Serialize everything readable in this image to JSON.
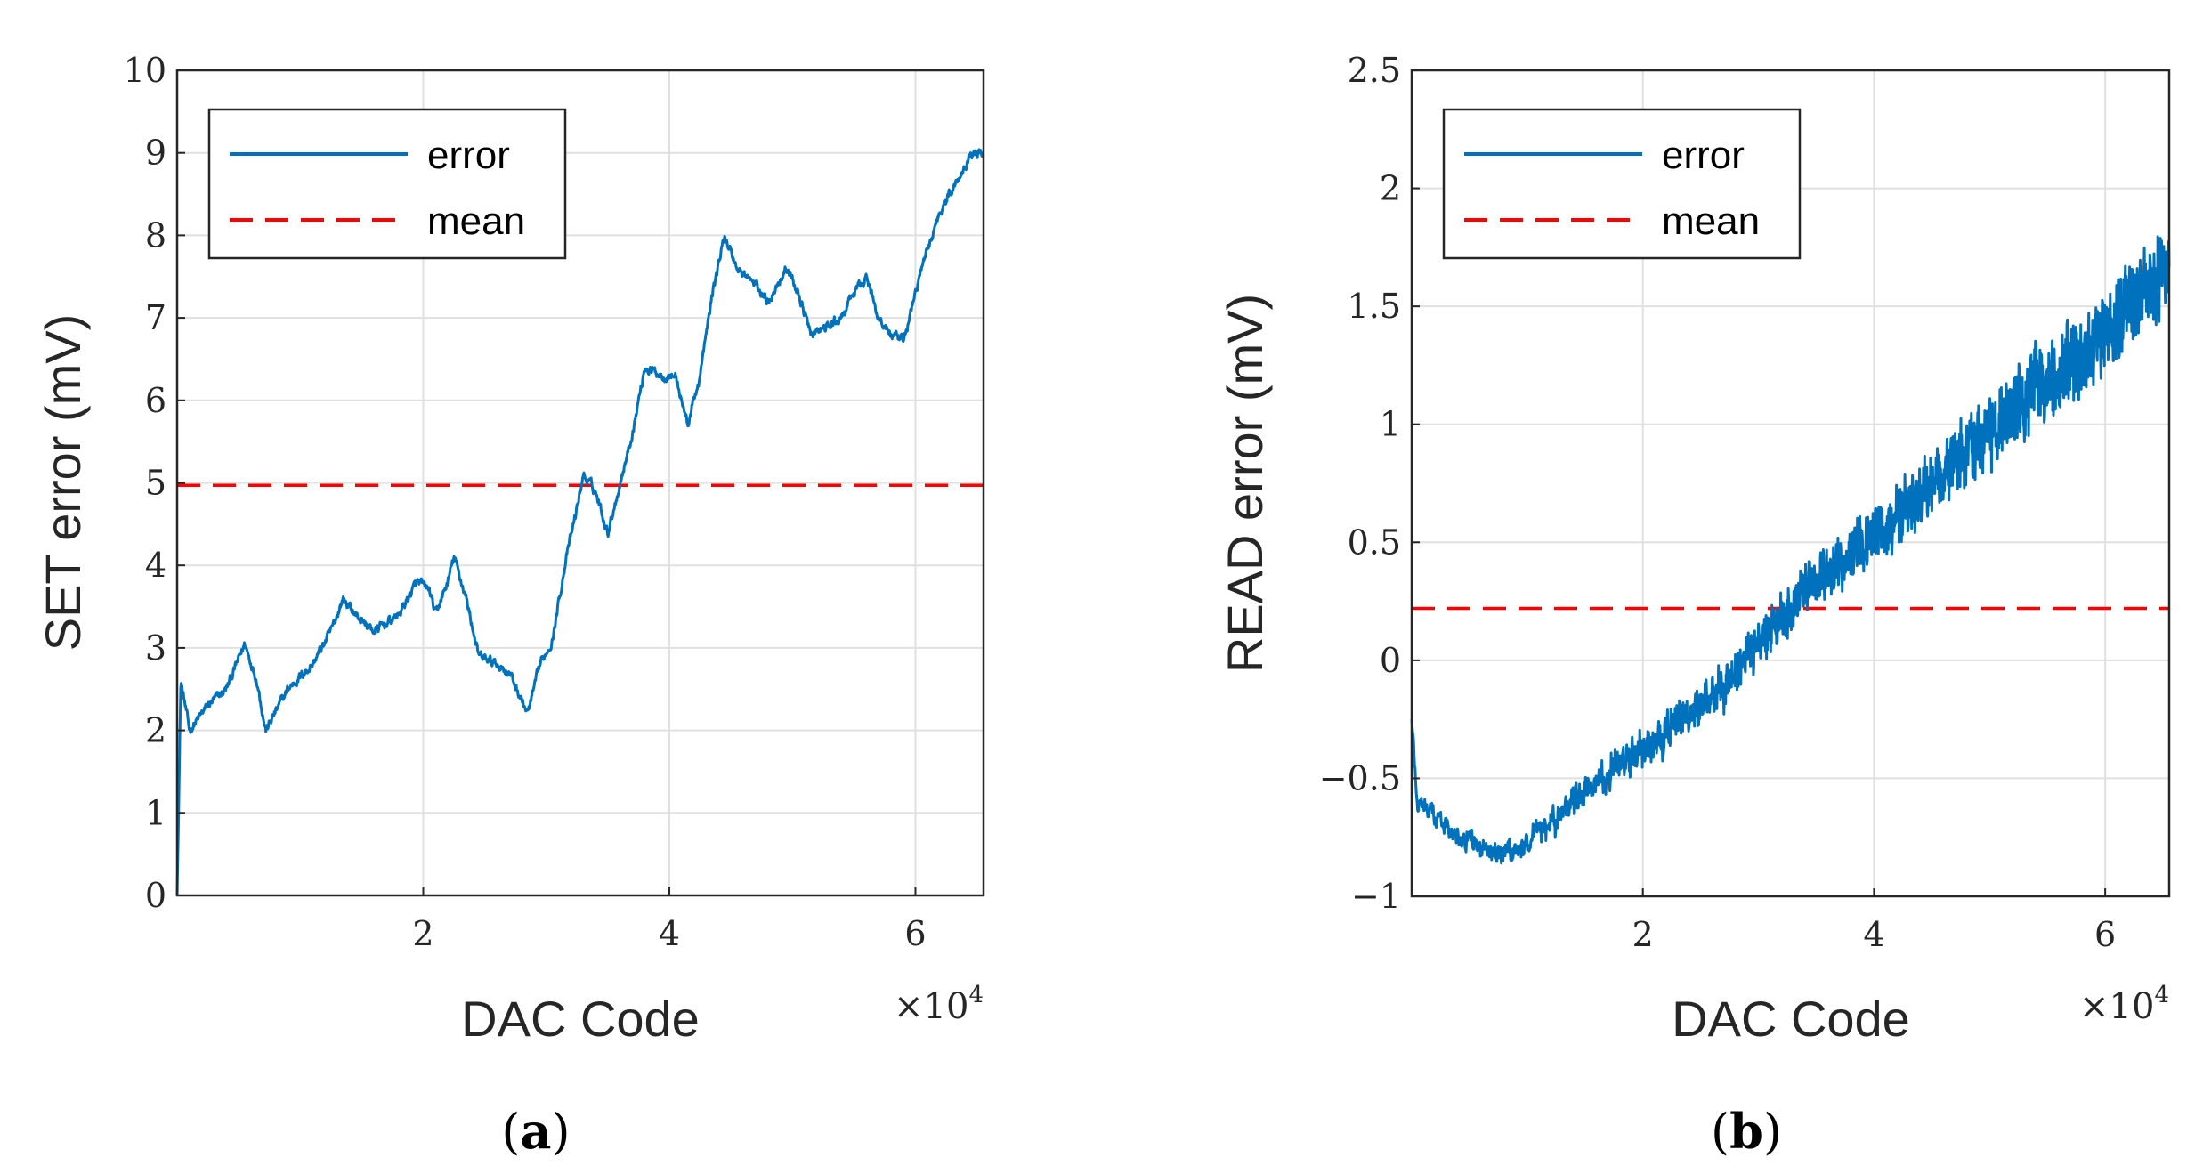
{
  "chart_data": [
    {
      "id": "a",
      "type": "line",
      "subfigure_label": "a",
      "xlabel": "DAC Code",
      "ylabel": "SET error (mV)",
      "xlim": [
        0,
        65535
      ],
      "ylim": [
        0,
        10
      ],
      "x_multiplier": "×10",
      "x_multiplier_exp": "4",
      "xticks": [
        {
          "value": 20000,
          "label": "2"
        },
        {
          "value": 40000,
          "label": "4"
        },
        {
          "value": 60000,
          "label": "6"
        }
      ],
      "yticks": [
        0,
        1,
        2,
        3,
        4,
        5,
        6,
        7,
        8,
        9,
        10
      ],
      "ytick_labels": [
        "0",
        "1",
        "2",
        "3",
        "4",
        "5",
        "6",
        "7",
        "8",
        "9",
        "10"
      ],
      "grid": true,
      "legend": {
        "placement": "top-left",
        "entries": [
          "error",
          "mean"
        ]
      },
      "series": [
        {
          "name": "error",
          "style": "solid",
          "color": "#0072BD",
          "noise": 0.08,
          "points": [
            [
              0,
              0
            ],
            [
              300,
              2.6
            ],
            [
              1000,
              2.0
            ],
            [
              2500,
              2.3
            ],
            [
              4000,
              2.5
            ],
            [
              5500,
              3.05
            ],
            [
              6500,
              2.6
            ],
            [
              7200,
              2.0
            ],
            [
              9000,
              2.5
            ],
            [
              11000,
              2.8
            ],
            [
              12500,
              3.2
            ],
            [
              13500,
              3.6
            ],
            [
              14500,
              3.4
            ],
            [
              16000,
              3.2
            ],
            [
              17000,
              3.3
            ],
            [
              18000,
              3.4
            ],
            [
              19500,
              3.8
            ],
            [
              20500,
              3.7
            ],
            [
              21000,
              3.4
            ],
            [
              22000,
              3.8
            ],
            [
              22500,
              4.1
            ],
            [
              23500,
              3.6
            ],
            [
              24500,
              2.9
            ],
            [
              26000,
              2.8
            ],
            [
              27000,
              2.7
            ],
            [
              28500,
              2.2
            ],
            [
              29500,
              2.8
            ],
            [
              30500,
              3.1
            ],
            [
              31500,
              4.0
            ],
            [
              32500,
              4.7
            ],
            [
              33000,
              5.1
            ],
            [
              34000,
              4.9
            ],
            [
              35000,
              4.4
            ],
            [
              36000,
              5.0
            ],
            [
              37000,
              5.6
            ],
            [
              38000,
              6.4
            ],
            [
              39500,
              6.3
            ],
            [
              40500,
              6.3
            ],
            [
              41500,
              5.7
            ],
            [
              42500,
              6.3
            ],
            [
              43500,
              7.3
            ],
            [
              44500,
              8.0
            ],
            [
              45500,
              7.6
            ],
            [
              47000,
              7.4
            ],
            [
              48000,
              7.2
            ],
            [
              49500,
              7.6
            ],
            [
              50500,
              7.3
            ],
            [
              51500,
              6.8
            ],
            [
              53000,
              6.9
            ],
            [
              54000,
              7.0
            ],
            [
              55000,
              7.3
            ],
            [
              56000,
              7.5
            ],
            [
              57000,
              7.0
            ],
            [
              58000,
              6.8
            ],
            [
              59000,
              6.7
            ],
            [
              60500,
              7.6
            ],
            [
              62000,
              8.3
            ],
            [
              63500,
              8.7
            ],
            [
              64500,
              9.0
            ],
            [
              65535,
              9.0
            ]
          ]
        },
        {
          "name": "mean",
          "style": "dashed",
          "color": "#FF0000",
          "value": 4.97
        }
      ]
    },
    {
      "id": "b",
      "type": "line",
      "subfigure_label": "b",
      "xlabel": "DAC Code",
      "ylabel": "READ error (mV)",
      "xlim": [
        0,
        65535
      ],
      "ylim": [
        -1,
        2.5
      ],
      "x_multiplier": "×10",
      "x_multiplier_exp": "4",
      "xticks": [
        {
          "value": 20000,
          "label": "2"
        },
        {
          "value": 40000,
          "label": "4"
        },
        {
          "value": 60000,
          "label": "6"
        }
      ],
      "yticks": [
        -1,
        -0.5,
        0,
        0.5,
        1,
        1.5,
        2,
        2.5
      ],
      "ytick_labels": [
        "−1",
        "−0.5",
        "0",
        "0.5",
        "1",
        "1.5",
        "2",
        "2.5"
      ],
      "grid": true,
      "legend": {
        "placement": "top-left",
        "entries": [
          "error",
          "mean"
        ]
      },
      "series": [
        {
          "name": "error",
          "style": "solid",
          "color": "#0072BD",
          "noise": 0.06,
          "noise_growth": 0.18,
          "points": [
            [
              0,
              -0.25
            ],
            [
              500,
              -0.6
            ],
            [
              3000,
              -0.7
            ],
            [
              6000,
              -0.8
            ],
            [
              8000,
              -0.83
            ],
            [
              10000,
              -0.78
            ],
            [
              14000,
              -0.6
            ],
            [
              18000,
              -0.45
            ],
            [
              22000,
              -0.3
            ],
            [
              26000,
              -0.15
            ],
            [
              30000,
              0.05
            ],
            [
              34000,
              0.3
            ],
            [
              38000,
              0.45
            ],
            [
              42000,
              0.6
            ],
            [
              46000,
              0.8
            ],
            [
              50000,
              0.95
            ],
            [
              54000,
              1.15
            ],
            [
              58000,
              1.3
            ],
            [
              62000,
              1.5
            ],
            [
              65535,
              1.65
            ]
          ]
        },
        {
          "name": "mean",
          "style": "dashed",
          "color": "#FF0000",
          "value": 0.22
        }
      ]
    }
  ]
}
